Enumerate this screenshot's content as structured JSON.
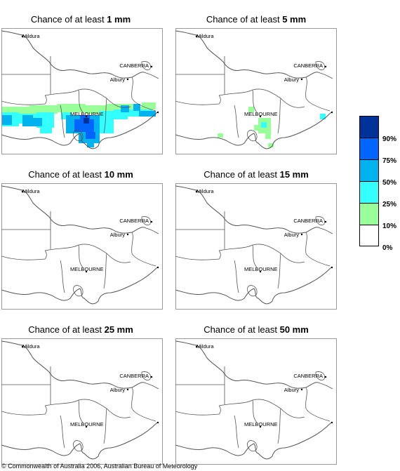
{
  "panels": [
    {
      "prefix": "Chance of at least ",
      "amount": "1 mm"
    },
    {
      "prefix": "Chance of at least ",
      "amount": "5 mm"
    },
    {
      "prefix": "Chance of at least ",
      "amount": "10 mm"
    },
    {
      "prefix": "Chance of at least ",
      "amount": "15 mm"
    },
    {
      "prefix": "Chance of at least ",
      "amount": "25 mm"
    },
    {
      "prefix": "Chance of at least ",
      "amount": "50 mm"
    }
  ],
  "places": {
    "mildura": "Mildura",
    "canberra": "CANBERRA",
    "albury": "Albury",
    "melbourne": "MELBOURNE"
  },
  "legend": {
    "colors": [
      "#003399",
      "#0066ff",
      "#00b2ee",
      "#33ffff",
      "#99ff99",
      "#ffffff"
    ],
    "labels": [
      "90%",
      "75%",
      "50%",
      "25%",
      "10%",
      "0%"
    ]
  },
  "copyright": "© Commonwealth of Australia 2006, Australian Bureau of Meteorology"
}
